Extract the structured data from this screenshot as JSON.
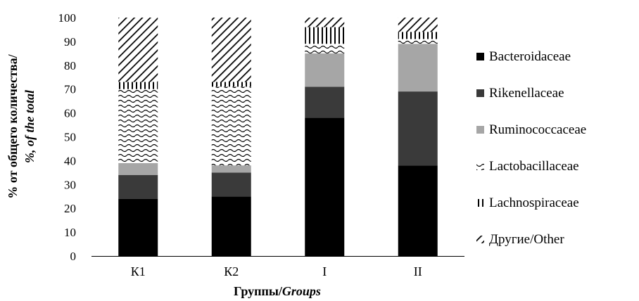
{
  "chart_data": {
    "type": "bar",
    "stacked": true,
    "categories": [
      "К1",
      "К2",
      "I",
      "II"
    ],
    "series": [
      {
        "name": "Bacteroidaceae",
        "color": "#000000",
        "pattern": "solid",
        "values": [
          24,
          25,
          58,
          38
        ]
      },
      {
        "name": "Rikenellaceae",
        "color": "#3a3a3a",
        "pattern": "solid",
        "values": [
          10,
          10,
          13,
          31
        ]
      },
      {
        "name": "Ruminococcaceae",
        "color": "#a6a6a6",
        "pattern": "solid",
        "values": [
          5,
          3,
          14,
          20
        ]
      },
      {
        "name": "Lactobacillaceae",
        "color": "#000000",
        "pattern": "waves",
        "values": [
          31,
          33,
          4,
          2
        ]
      },
      {
        "name": "Lachnospiraceae",
        "color": "#000000",
        "pattern": "vertical-lines",
        "values": [
          3,
          2,
          7,
          3
        ]
      },
      {
        "name": "Другие/Other",
        "color": "#000000",
        "pattern": "diagonal-lines",
        "values": [
          27,
          27,
          4,
          6
        ]
      }
    ],
    "ylim": [
      0,
      100
    ],
    "yticks": [
      "0",
      "10",
      "20",
      "30",
      "40",
      "50",
      "60",
      "70",
      "80",
      "90",
      "100"
    ],
    "ylabel_line1": "% от общего количества/",
    "ylabel_line2": "%, of the total",
    "xlabel_ru": "Группы/",
    "xlabel_en": "Groups",
    "legend_position": "right",
    "grid": false
  }
}
